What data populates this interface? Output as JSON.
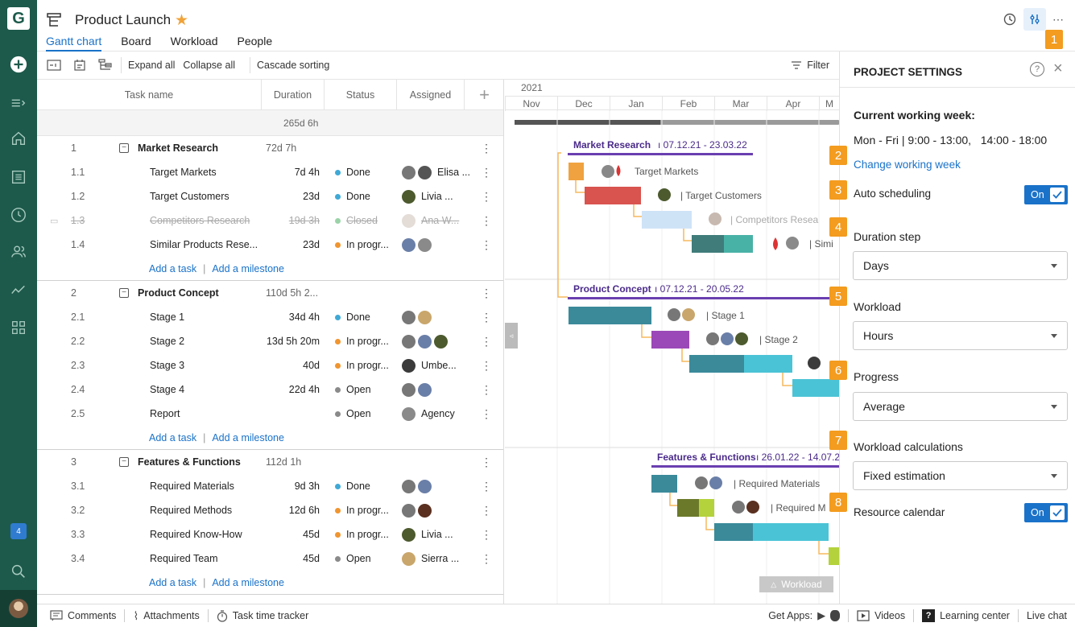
{
  "app": {
    "logo_letter": "G",
    "notification_count": "4"
  },
  "header": {
    "title": "Product Launch",
    "tabs": [
      "Gantt chart",
      "Board",
      "Workload",
      "People"
    ],
    "active_tab": "Gantt chart"
  },
  "toolbar": {
    "expand_all": "Expand all",
    "collapse_all": "Collapse all",
    "cascade_sorting": "Cascade sorting",
    "filter": "Filter"
  },
  "grid": {
    "columns": {
      "task_name": "Task name",
      "duration": "Duration",
      "status": "Status",
      "assigned": "Assigned"
    },
    "total_duration": "265d 6h",
    "add_task": "Add a task",
    "add_milestone": "Add a milestone",
    "groups": [
      {
        "num": "1",
        "name": "Market Research",
        "duration": "72d 7h",
        "tasks": [
          {
            "num": "1.1",
            "name": "Target Markets",
            "duration": "7d 4h",
            "status": "Done",
            "status_color": "#3fa9d6",
            "assigned": "Elisa ...",
            "avatars": [
              "#777",
              "#555"
            ]
          },
          {
            "num": "1.2",
            "name": "Target Customers",
            "duration": "23d",
            "status": "Done",
            "status_color": "#3fa9d6",
            "assigned": "Livia ...",
            "avatars": [
              "#4c5a2e"
            ]
          },
          {
            "num": "1.3",
            "name": "Competitors Research",
            "duration": "19d 3h",
            "status": "Closed",
            "status_color": "#9bd3a8",
            "assigned": "Ana W...",
            "avatars": [
              "#c8b9b0"
            ],
            "closed": true
          },
          {
            "num": "1.4",
            "name": "Similar Products Rese...",
            "duration": "23d",
            "status": "In progr...",
            "status_color": "#f0952f",
            "assigned": "",
            "avatars": [
              "#6a7fa8",
              "#8a8a8a"
            ]
          }
        ]
      },
      {
        "num": "2",
        "name": "Product Concept",
        "duration": "110d 5h 2...",
        "tasks": [
          {
            "num": "2.1",
            "name": "Stage 1",
            "duration": "34d 4h",
            "status": "Done",
            "status_color": "#3fa9d6",
            "assigned": "",
            "avatars": [
              "#777",
              "#c9a66b"
            ]
          },
          {
            "num": "2.2",
            "name": "Stage 2",
            "duration": "13d 5h 20m",
            "status": "In progr...",
            "status_color": "#f0952f",
            "assigned": "",
            "avatars": [
              "#777",
              "#6a7fa8",
              "#4c5a2e"
            ]
          },
          {
            "num": "2.3",
            "name": "Stage 3",
            "duration": "40d",
            "status": "In progr...",
            "status_color": "#f0952f",
            "assigned": "Umbe...",
            "avatars": [
              "#3b3b3b"
            ]
          },
          {
            "num": "2.4",
            "name": "Stage 4",
            "duration": "22d 4h",
            "status": "Open",
            "status_color": "#8a8a8a",
            "assigned": "",
            "avatars": [
              "#777",
              "#6a7fa8"
            ]
          },
          {
            "num": "2.5",
            "name": "Report",
            "duration": "",
            "status": "Open",
            "status_color": "#8a8a8a",
            "assigned": "Agency",
            "avatars": [
              "#8a8a8a"
            ]
          }
        ]
      },
      {
        "num": "3",
        "name": "Features & Functions",
        "duration": "112d 1h",
        "tasks": [
          {
            "num": "3.1",
            "name": "Required Materials",
            "duration": "9d 3h",
            "status": "Done",
            "status_color": "#3fa9d6",
            "assigned": "",
            "avatars": [
              "#777",
              "#6a7fa8"
            ]
          },
          {
            "num": "3.2",
            "name": "Required Methods",
            "duration": "12d 6h",
            "status": "In progr...",
            "status_color": "#f0952f",
            "assigned": "",
            "avatars": [
              "#777",
              "#5a3020"
            ]
          },
          {
            "num": "3.3",
            "name": "Required Know-How",
            "duration": "45d",
            "status": "In progr...",
            "status_color": "#f0952f",
            "assigned": "Livia ...",
            "avatars": [
              "#4c5a2e"
            ]
          },
          {
            "num": "3.4",
            "name": "Required Team",
            "duration": "45d",
            "status": "Open",
            "status_color": "#8a8a8a",
            "assigned": "Sierra ...",
            "avatars": [
              "#c9a66b"
            ]
          }
        ]
      }
    ]
  },
  "timeline": {
    "year": "2021",
    "months": [
      "Nov",
      "Dec",
      "Jan",
      "Feb",
      "Mar",
      "Apr",
      "M"
    ],
    "summaries": [
      {
        "name": "Market Research",
        "dates": "07.12.21 - 23.03.22"
      },
      {
        "name": "Product Concept",
        "dates": "07.12.21 - 20.05.22"
      },
      {
        "name": "Features & Functions",
        "dates": "26.01.22 - 14.07.2"
      }
    ],
    "bar_labels": [
      "Target Markets",
      "Target Customers",
      "Competitors Resea",
      "Simi",
      "Stage 1",
      "Stage 2",
      "Required Materials",
      "Required M"
    ],
    "workload_tab": "Workload"
  },
  "settings": {
    "title": "PROJECT SETTINGS",
    "working_week_label": "Current working week:",
    "working_week_value": "Mon - Fri | 9:00 - 13:00,   14:00 - 18:00",
    "change_working_week": "Change working week",
    "auto_scheduling": "Auto scheduling",
    "toggle_on": "On",
    "duration_step": "Duration step",
    "duration_step_value": "Days",
    "workload": "Workload",
    "workload_value": "Hours",
    "progress": "Progress",
    "progress_value": "Average",
    "workload_calculations": "Workload calculations",
    "workload_calculations_value": "Fixed estimation",
    "resource_calendar": "Resource calendar",
    "badges": [
      "1",
      "2",
      "3",
      "4",
      "5",
      "6",
      "7",
      "8"
    ]
  },
  "footer": {
    "comments": "Comments",
    "attachments": "Attachments",
    "time_tracker": "Task time tracker",
    "get_apps": "Get Apps:",
    "videos": "Videos",
    "learning_center": "Learning center",
    "live_chat": "Live chat"
  }
}
